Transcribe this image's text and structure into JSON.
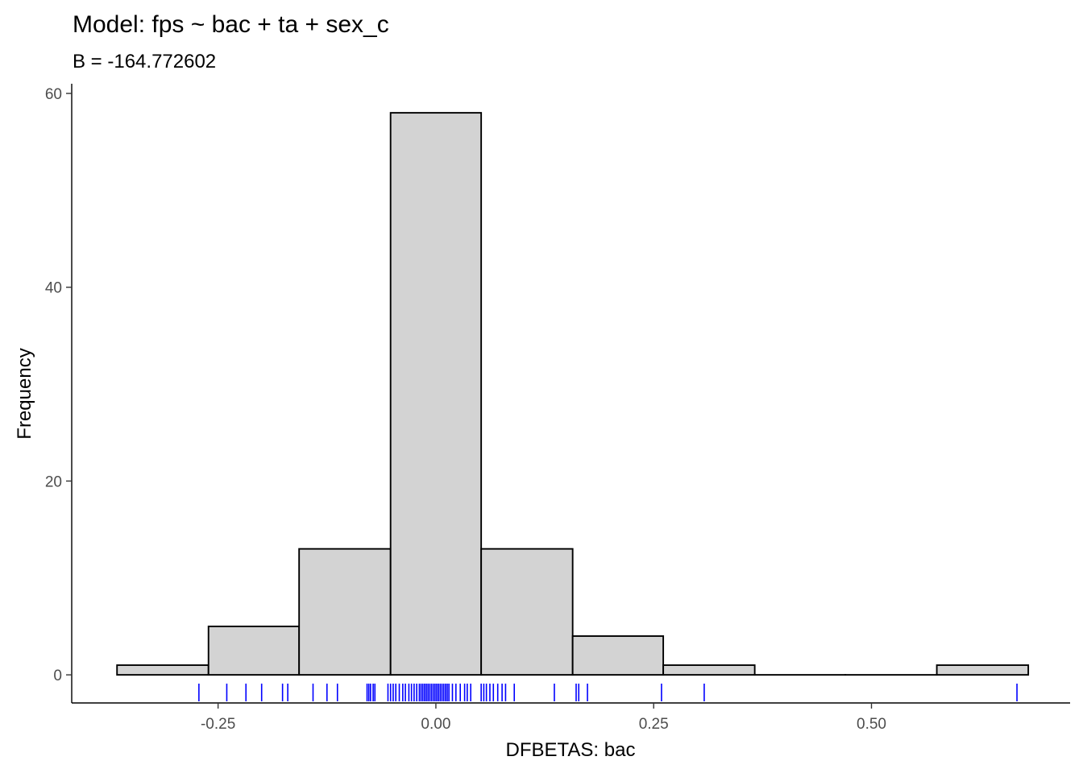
{
  "chart_data": {
    "type": "bar",
    "title": "Model: fps ~ bac + ta + sex_c",
    "subtitle": "B = -164.772602",
    "xlabel": "DFBETAS: bac",
    "ylabel": "Frequency",
    "x_ticks": [
      -0.25,
      0.0,
      0.25,
      0.5
    ],
    "x_tick_labels": [
      "-0.25",
      "0.00",
      "0.25",
      "0.50"
    ],
    "y_ticks": [
      0,
      20,
      40,
      60
    ],
    "y_tick_labels": [
      "0",
      "20",
      "40",
      "60"
    ],
    "xlim": [
      -0.418,
      0.728
    ],
    "ylim": [
      -2.9,
      61
    ],
    "bins": [
      {
        "x0": -0.366,
        "x1": -0.261,
        "count": 1
      },
      {
        "x0": -0.261,
        "x1": -0.157,
        "count": 5
      },
      {
        "x0": -0.157,
        "x1": -0.052,
        "count": 13
      },
      {
        "x0": -0.052,
        "x1": 0.052,
        "count": 58
      },
      {
        "x0": 0.052,
        "x1": 0.157,
        "count": 13
      },
      {
        "x0": 0.157,
        "x1": 0.261,
        "count": 4
      },
      {
        "x0": 0.261,
        "x1": 0.366,
        "count": 1
      },
      {
        "x0": 0.366,
        "x1": 0.47,
        "count": 0
      },
      {
        "x0": 0.47,
        "x1": 0.575,
        "count": 0
      },
      {
        "x0": 0.575,
        "x1": 0.68,
        "count": 1
      }
    ],
    "rug": [
      -0.272,
      -0.24,
      -0.218,
      -0.2,
      -0.176,
      -0.17,
      -0.141,
      -0.125,
      -0.113,
      -0.079,
      -0.077,
      -0.075,
      -0.072,
      -0.07,
      -0.055,
      -0.052,
      -0.049,
      -0.046,
      -0.042,
      -0.038,
      -0.035,
      -0.031,
      -0.028,
      -0.025,
      -0.022,
      -0.019,
      -0.017,
      -0.015,
      -0.013,
      -0.011,
      -0.009,
      -0.007,
      -0.005,
      -0.003,
      -0.001,
      0.001,
      0.003,
      0.005,
      0.007,
      0.009,
      0.011,
      0.013,
      0.015,
      0.019,
      0.023,
      0.028,
      0.033,
      0.036,
      0.04,
      0.052,
      0.055,
      0.058,
      0.062,
      0.066,
      0.071,
      0.076,
      0.08,
      0.09,
      0.136,
      0.161,
      0.164,
      0.174,
      0.259,
      0.308,
      0.667
    ],
    "colors": {
      "bar_fill": "#d3d3d3",
      "bar_stroke": "#000000",
      "rug": "#0000ff",
      "tick_label": "#4d4d4d"
    },
    "grid": false,
    "legend": "none"
  }
}
